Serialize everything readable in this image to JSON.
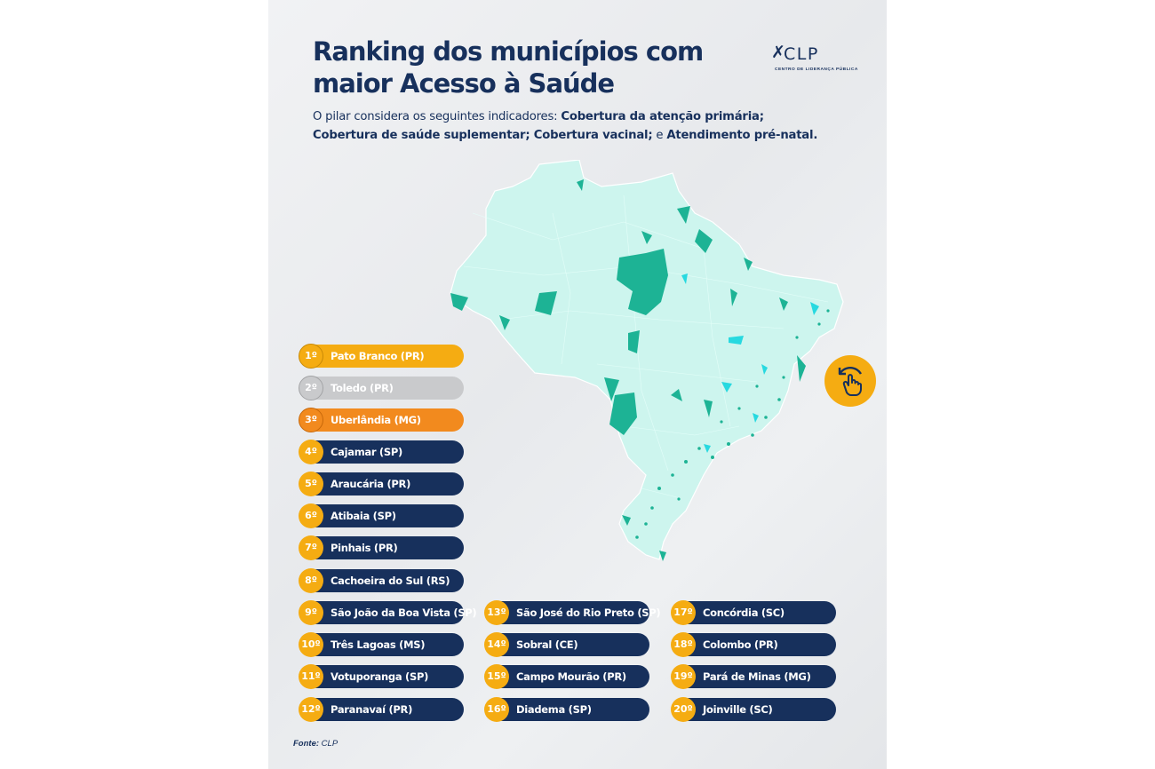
{
  "title_line1": "Ranking dos municípios com",
  "title_line2": "maior Acesso à Saúde",
  "subtitle": {
    "intro": "O pilar considera os seguintes indicadores: ",
    "ind1": "Cobertura da atenção primária;",
    "ind2": "Cobertura de saúde suplementar; Cobertura vacinal;",
    "and": " e ",
    "ind3": "Atendimento pré-natal."
  },
  "logo": {
    "name": "CLP",
    "subtitle": "CENTRO DE LIDERANÇA PÚBLICA"
  },
  "source": {
    "label": "Fonte:",
    "value": " CLP"
  },
  "icons": {
    "swipe": "swipe-hand-icon",
    "map": "brazil-map"
  },
  "colors": {
    "navy": "#17305c",
    "gold": "#f5ac12",
    "silver": "#c9cacc",
    "bronze": "#f28a1e",
    "map_base": "#cdf5ee",
    "map_highlight": "#1db395",
    "map_cyan": "#27d9e0"
  },
  "ranking": [
    {
      "rank": "1º",
      "name": "Pato Branco (PR)"
    },
    {
      "rank": "2º",
      "name": "Toledo (PR)"
    },
    {
      "rank": "3º",
      "name": "Uberlândia (MG)"
    },
    {
      "rank": "4º",
      "name": "Cajamar (SP)"
    },
    {
      "rank": "5º",
      "name": "Araucária (PR)"
    },
    {
      "rank": "6º",
      "name": "Atibaia (SP)"
    },
    {
      "rank": "7º",
      "name": "Pinhais (PR)"
    },
    {
      "rank": "8º",
      "name": "Cachoeira do Sul (RS)"
    },
    {
      "rank": "9º",
      "name": "São João da Boa Vista (SP)"
    },
    {
      "rank": "10º",
      "name": "Três Lagoas (MS)"
    },
    {
      "rank": "11º",
      "name": "Votuporanga (SP)"
    },
    {
      "rank": "12º",
      "name": "Paranavaí (PR)"
    },
    {
      "rank": "13º",
      "name": "São José do Rio Preto (SP)"
    },
    {
      "rank": "14º",
      "name": "Sobral (CE)"
    },
    {
      "rank": "15º",
      "name": "Campo Mourão (PR)"
    },
    {
      "rank": "16º",
      "name": "Diadema (SP)"
    },
    {
      "rank": "17º",
      "name": "Concórdia (SC)"
    },
    {
      "rank": "18º",
      "name": "Colombo (PR)"
    },
    {
      "rank": "19º",
      "name": "Pará de Minas (MG)"
    },
    {
      "rank": "20º",
      "name": "Joinville (SC)"
    }
  ]
}
